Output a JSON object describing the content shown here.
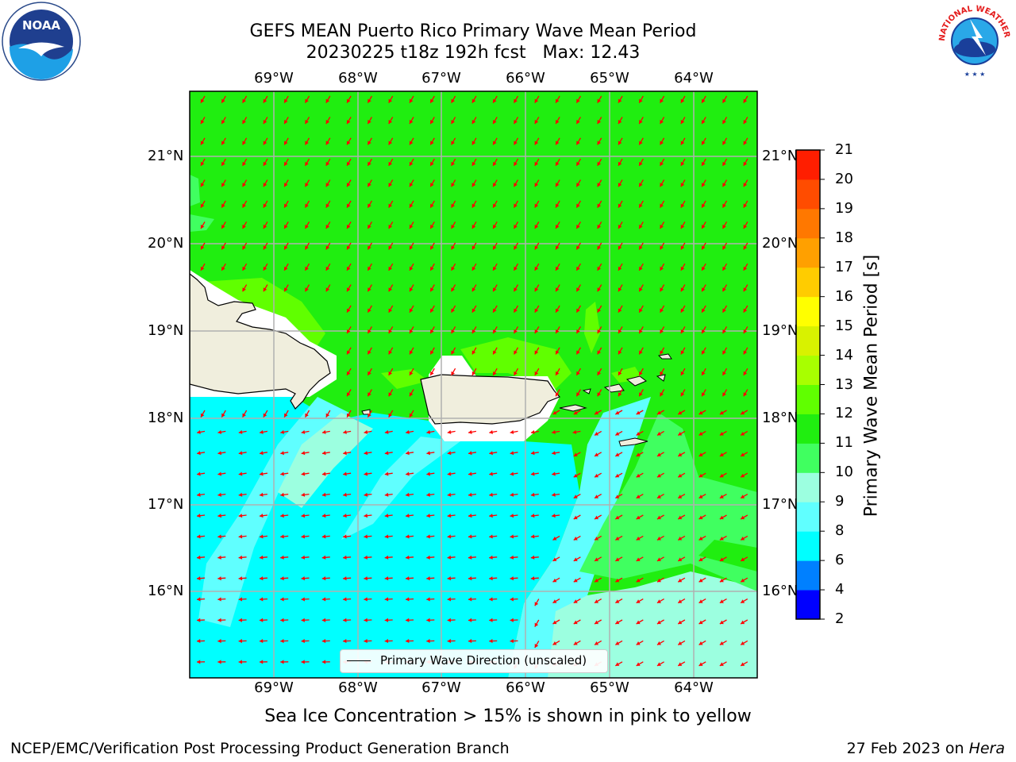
{
  "title": {
    "line1": "GEFS MEAN Puerto Rico Primary Wave Mean Period",
    "line2": "20230225 t18z 192h fcst   Max: 12.43"
  },
  "map": {
    "lon_labels": [
      "69°W",
      "68°W",
      "67°W",
      "66°W",
      "65°W",
      "64°W"
    ],
    "lat_labels": [
      "21°N",
      "20°N",
      "19°N",
      "18°N",
      "17°N",
      "16°N"
    ],
    "legend_label": "Primary Wave Direction (unscaled)"
  },
  "colorbar": {
    "label": "Primary Wave Mean Period [s]",
    "ticks": [
      "2",
      "4",
      "6",
      "8",
      "9",
      "10",
      "11",
      "12",
      "13",
      "14",
      "15",
      "16",
      "17",
      "18",
      "19",
      "20",
      "21"
    ],
    "colors": [
      "#0000ff",
      "#0080ff",
      "#00ffff",
      "#60ffff",
      "#9cffe0",
      "#40ff60",
      "#20ee10",
      "#60ff00",
      "#a8ff00",
      "#d8f200",
      "#ffff00",
      "#ffcc00",
      "#ffa000",
      "#ff7800",
      "#ff4c00",
      "#ff1e00"
    ]
  },
  "sea_ice_note": "Sea Ice Concentration > 15% is shown in pink to yellow",
  "footer": {
    "left": "NCEP/EMC/Verification Post Processing Product Generation Branch",
    "date": "27 Feb 2023 on ",
    "machine": "Hera"
  },
  "logos": {
    "noaa_text": "NOAA",
    "nws_text": "NATIONAL WEATHER SERVICE"
  },
  "colors": {
    "land": "#f0eedd",
    "arrow": "#ff0000"
  }
}
